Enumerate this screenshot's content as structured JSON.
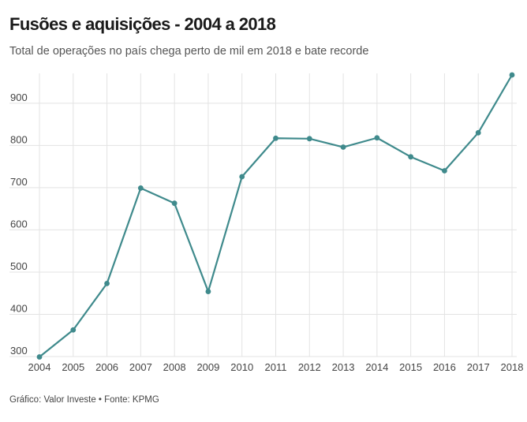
{
  "header": {
    "title": "Fusões e aquisições - 2004 a 2018",
    "subtitle": "Total de operações no país chega perto de mil em 2018 e bate recorde"
  },
  "footer": {
    "source": "Gráfico: Valor Investe • Fonte: KPMG"
  },
  "colors": {
    "series": "#3f8a8c",
    "grid": "#e3e3e3",
    "text": "#444444"
  },
  "chart_data": {
    "type": "line",
    "title": "Fusões e aquisições - 2004 a 2018",
    "subtitle": "Total de operações no país chega perto de mil em 2018 e bate recorde",
    "xlabel": "",
    "ylabel": "",
    "x": [
      "2004",
      "2005",
      "2006",
      "2007",
      "2008",
      "2009",
      "2010",
      "2011",
      "2012",
      "2013",
      "2014",
      "2015",
      "2016",
      "2017",
      "2018"
    ],
    "series": [
      {
        "values": [
          299,
          363,
          473,
          699,
          663,
          454,
          726,
          817,
          816,
          796,
          818,
          773,
          740,
          830,
          967
        ]
      }
    ],
    "yticks": [
      300,
      400,
      500,
      600,
      700,
      800,
      900
    ],
    "ylim": [
      300,
      967
    ],
    "grid": {
      "vertical": true,
      "horizontal": true
    },
    "markers": true,
    "legend": "none"
  }
}
